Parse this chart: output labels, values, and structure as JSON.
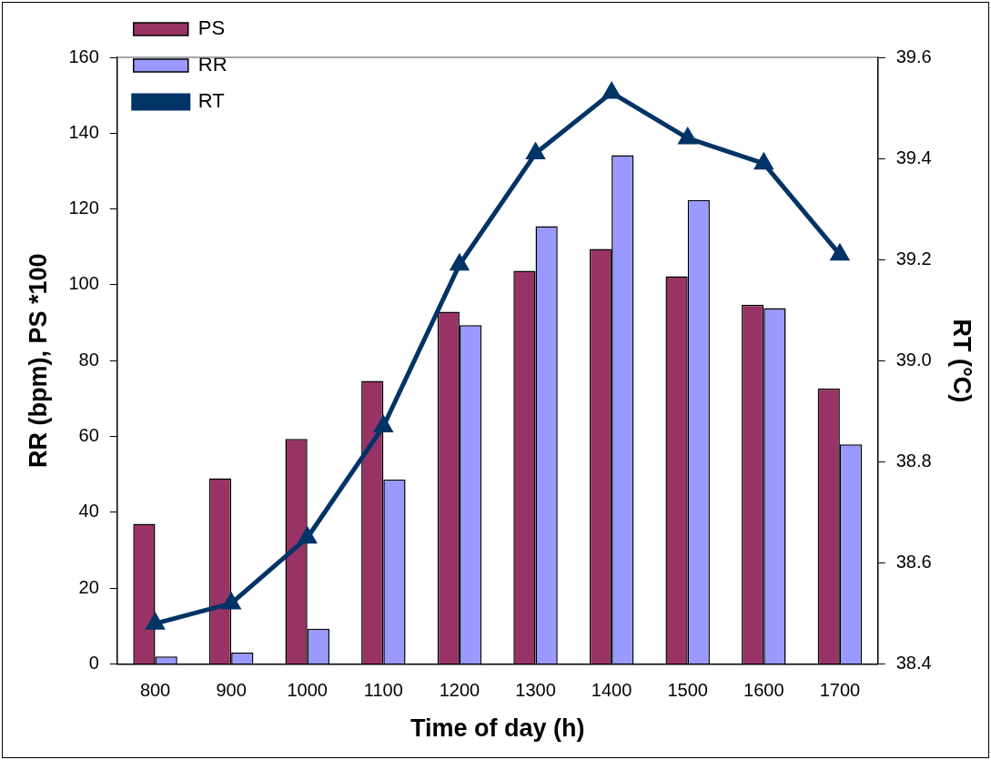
{
  "chart_data": {
    "type": "bar",
    "xlabel": "Time of day (h)",
    "ylabel": "RR (bpm), PS *100",
    "y2label": "RT (°C)",
    "categories": [
      "800",
      "900",
      "1000",
      "1100",
      "1200",
      "1300",
      "1400",
      "1500",
      "1600",
      "1700"
    ],
    "series": [
      {
        "name": "PS",
        "color": "#993366",
        "values": [
          37,
          49,
          59.4,
          74.7,
          92.9,
          103.7,
          109.5,
          102.3,
          94.8,
          72.7
        ]
      },
      {
        "name": "RR",
        "color": "#9999ff",
        "values": [
          2,
          3,
          9.3,
          48.7,
          89.4,
          115.5,
          134.2,
          122.4,
          93.9,
          57.9
        ]
      },
      {
        "name": "RT",
        "type": "line",
        "axis": "y2",
        "color": "#003366",
        "marker": "triangle",
        "values": [
          38.48,
          38.52,
          38.65,
          38.87,
          39.19,
          39.41,
          39.53,
          39.44,
          39.39,
          39.21
        ]
      }
    ],
    "ylim": [
      0,
      160
    ],
    "yticks": [
      0,
      20,
      40,
      60,
      80,
      100,
      120,
      140,
      160
    ],
    "y2lim": [
      38.4,
      39.6
    ],
    "y2ticks": [
      38.4,
      38.6,
      38.8,
      {
        "value": 39,
        "label": "39.0"
      },
      39.2,
      39.4,
      39.6
    ],
    "grid": false,
    "legend": "top left"
  }
}
